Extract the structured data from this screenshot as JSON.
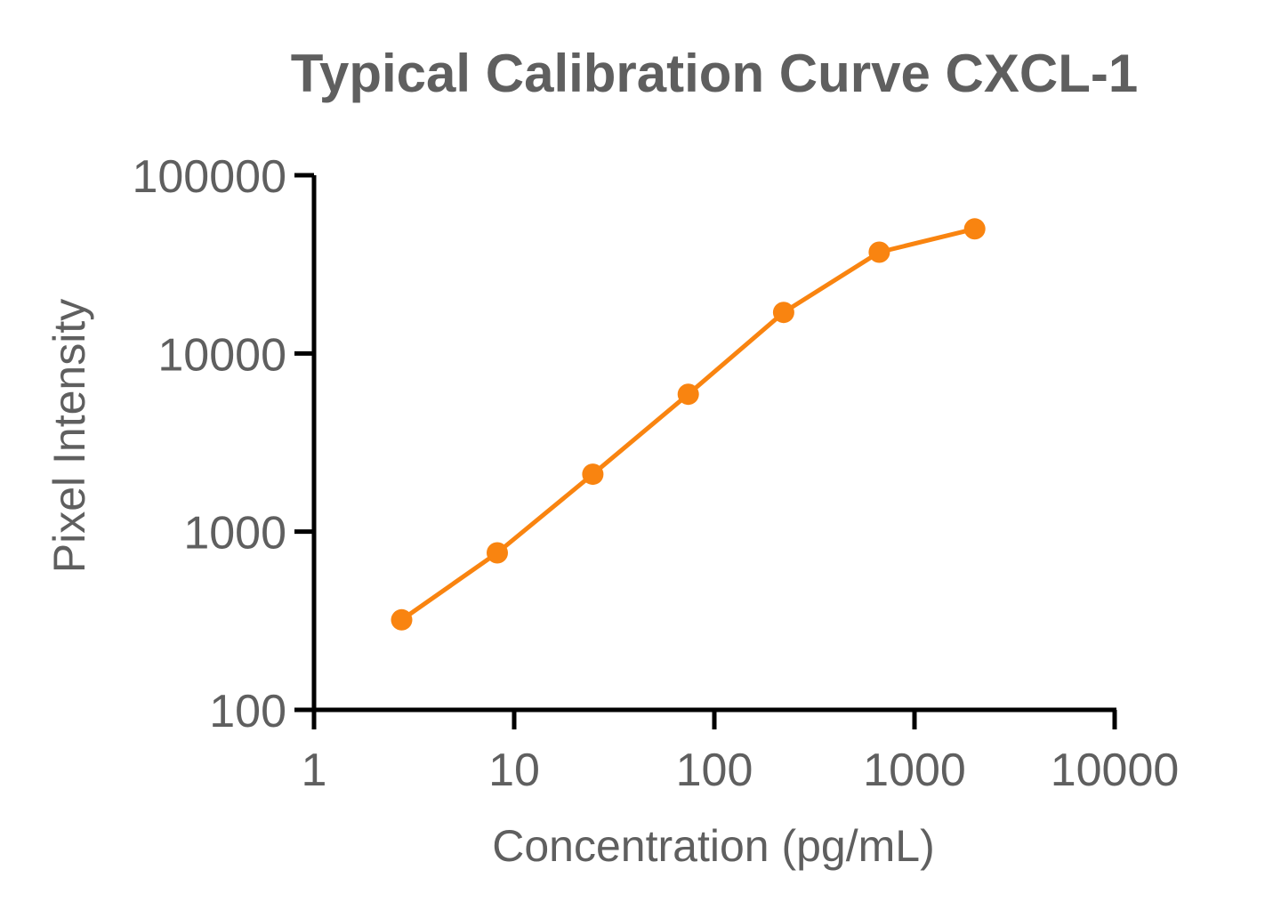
{
  "chart_data": {
    "type": "line",
    "title": "Typical Calibration Curve CXCL-1",
    "xlabel": "Concentration (pg/mL)",
    "ylabel": "Pixel Intensity",
    "x_scale": "log",
    "y_scale": "log",
    "xlim": [
      1,
      10000
    ],
    "ylim": [
      100,
      100000
    ],
    "x_ticks": [
      "1",
      "10",
      "100",
      "1000",
      "10000"
    ],
    "y_ticks": [
      "100",
      "1000",
      "10000",
      "100000"
    ],
    "grid": false,
    "legend": "none",
    "series": [
      {
        "color": "#F98410",
        "marker": "circle",
        "x": [
          2.74,
          8.23,
          24.7,
          74.1,
          222,
          667,
          2000
        ],
        "y": [
          320,
          760,
          2100,
          5900,
          17000,
          37000,
          50000
        ]
      }
    ]
  },
  "colors": {
    "text": "#5f5f5f",
    "axis": "#000000",
    "series": "#F98410"
  }
}
